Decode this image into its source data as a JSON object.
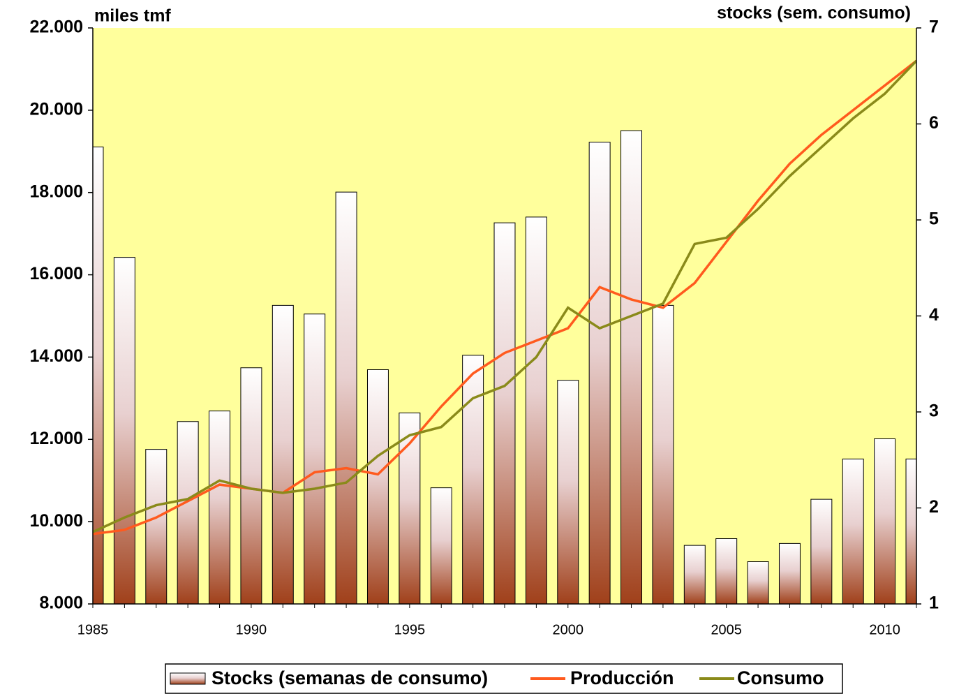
{
  "chart_data": {
    "type": "bar",
    "y_label": "miles tmf",
    "y2_label": "stocks (sem. consumo)",
    "x": [
      1985,
      1986,
      1987,
      1988,
      1989,
      1990,
      1991,
      1992,
      1993,
      1994,
      1995,
      1996,
      1997,
      1998,
      1999,
      2000,
      2001,
      2002,
      2003,
      2004,
      2005,
      2006,
      2007,
      2008,
      2009,
      2010,
      2011
    ],
    "xlim": [
      1985,
      2011
    ],
    "xticks": [
      1985,
      1990,
      1995,
      2000,
      2005,
      2010
    ],
    "ylim": [
      8000,
      22000
    ],
    "yticks": [
      {
        "value": 8000,
        "label": "8.000"
      },
      {
        "value": 10000,
        "label": "10.000"
      },
      {
        "value": 12000,
        "label": "12.000"
      },
      {
        "value": 14000,
        "label": "14.000"
      },
      {
        "value": 16000,
        "label": "16.000"
      },
      {
        "value": 18000,
        "label": "18.000"
      },
      {
        "value": 20000,
        "label": "20.000"
      },
      {
        "value": 22000,
        "label": "22.000"
      }
    ],
    "y2lim": [
      1,
      7
    ],
    "y2ticks": [
      1,
      2,
      3,
      4,
      5,
      6,
      7
    ],
    "background": "#ffff9c",
    "series": [
      {
        "name": "Stocks (semanas de consumo)",
        "type": "bar",
        "axis": "y2",
        "color": "#a0401a",
        "values": [
          5.76,
          4.61,
          2.61,
          2.9,
          3.01,
          3.46,
          4.11,
          4.02,
          5.29,
          3.44,
          2.99,
          2.21,
          3.59,
          4.97,
          5.03,
          3.33,
          5.81,
          5.93,
          4.11,
          1.61,
          1.68,
          1.44,
          1.63,
          2.09,
          2.51,
          2.72,
          2.51
        ]
      },
      {
        "name": "Producción",
        "type": "line",
        "color": "#ff5a1e",
        "values": [
          9700,
          9800,
          10100,
          10500,
          10900,
          10800,
          10700,
          11200,
          11300,
          11150,
          11900,
          12800,
          13600,
          14100,
          14400,
          14700,
          15700,
          15400,
          15200,
          15800,
          16800,
          17800,
          18700,
          19400,
          20000,
          20600,
          21200
        ]
      },
      {
        "name": "Consumo",
        "type": "line",
        "color": "#8a8a1a",
        "values": [
          9750,
          10100,
          10400,
          10550,
          11000,
          10800,
          10700,
          10800,
          10950,
          11600,
          12100,
          12300,
          13000,
          13300,
          14000,
          15200,
          14700,
          15000,
          15300,
          16750,
          16900,
          17600,
          18400,
          19100,
          19800,
          20400,
          21200
        ]
      }
    ]
  }
}
